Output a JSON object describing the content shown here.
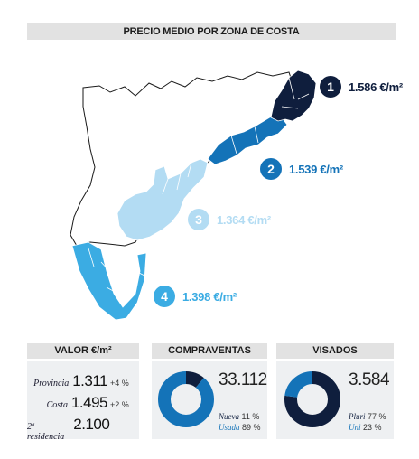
{
  "title": "PRECIO MEDIO POR ZONA DE COSTA",
  "zones": [
    {
      "num": "1",
      "price": "1.586 €/m²",
      "color": "#0f1e3d"
    },
    {
      "num": "2",
      "price": "1.539 €/m²",
      "color": "#1473b8"
    },
    {
      "num": "3",
      "price": "1.364 €/m²",
      "color": "#b3dcf3"
    },
    {
      "num": "4",
      "price": "1.398 €/m²",
      "color": "#3bace3"
    }
  ],
  "valor": {
    "header": "VALOR €/m²",
    "rows": [
      {
        "label": "Provincia",
        "value": "1.311",
        "change": "+4 %"
      },
      {
        "label": "Costa",
        "value": "1.495",
        "change": "+2 %"
      },
      {
        "label": "2ª residencia",
        "value": "2.100",
        "change": ""
      }
    ]
  },
  "compraventas": {
    "header": "COMPRAVENTAS",
    "total": "33.112",
    "items": [
      {
        "label": "Nueva",
        "pct": "11 %",
        "share": 0.11,
        "color": "#0f1e3d"
      },
      {
        "label": "Usada",
        "pct": "89 %",
        "share": 0.89,
        "color": "#1473b8"
      }
    ]
  },
  "visados": {
    "header": "VISADOS",
    "total": "3.584",
    "items": [
      {
        "label": "Pluri",
        "pct": "77 %",
        "share": 0.77,
        "color": "#0f1e3d"
      },
      {
        "label": "Uni",
        "pct": "23 %",
        "share": 0.23,
        "color": "#1473b8"
      }
    ]
  }
}
